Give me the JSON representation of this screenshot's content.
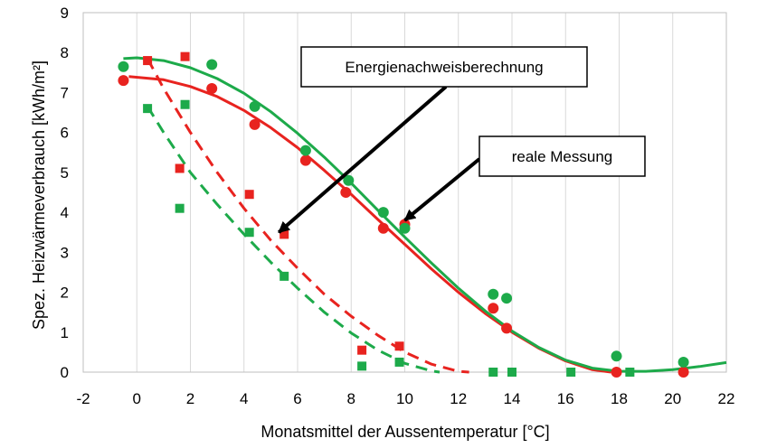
{
  "chart_data": {
    "type": "scatter",
    "xlabel": "Monatsmittel der Aussentemperatur [°C]",
    "ylabel": "Spez. Heizwärmeverbrauch  [kWh/m²]",
    "xlim": [
      -2,
      22
    ],
    "ylim": [
      0,
      9
    ],
    "x_ticks": [
      "-2",
      "0",
      "2",
      "4",
      "6",
      "8",
      "10",
      "12",
      "14",
      "16",
      "18",
      "20",
      "22"
    ],
    "y_ticks": [
      "0",
      "1",
      "2",
      "3",
      "4",
      "5",
      "6",
      "7",
      "8",
      "9"
    ],
    "grid": "vertical",
    "series": [
      {
        "color": "#e8231f",
        "marker": "circle",
        "points": [
          [
            -0.5,
            7.3
          ],
          [
            2.8,
            7.1
          ],
          [
            4.4,
            6.2
          ],
          [
            6.3,
            5.3
          ],
          [
            7.8,
            4.5
          ],
          [
            9.2,
            3.6
          ],
          [
            10.0,
            3.7
          ],
          [
            13.3,
            1.6
          ],
          [
            13.8,
            1.1
          ],
          [
            17.9,
            0.0
          ],
          [
            20.4,
            0.0
          ]
        ]
      },
      {
        "color": "#1daa4a",
        "marker": "circle",
        "points": [
          [
            -0.5,
            7.65
          ],
          [
            2.8,
            7.7
          ],
          [
            4.4,
            6.65
          ],
          [
            6.3,
            5.55
          ],
          [
            7.9,
            4.8
          ],
          [
            9.2,
            4.0
          ],
          [
            10.0,
            3.6
          ],
          [
            13.3,
            1.95
          ],
          [
            13.8,
            1.85
          ],
          [
            17.9,
            0.4
          ],
          [
            20.4,
            0.25
          ]
        ]
      },
      {
        "color": "#e8231f",
        "marker": "square",
        "points": [
          [
            0.4,
            7.8
          ],
          [
            1.6,
            5.1
          ],
          [
            1.8,
            7.9
          ],
          [
            4.2,
            4.45
          ],
          [
            5.5,
            3.45
          ],
          [
            8.4,
            0.55
          ],
          [
            9.8,
            0.65
          ]
        ]
      },
      {
        "color": "#1daa4a",
        "marker": "square",
        "points": [
          [
            0.4,
            6.6
          ],
          [
            1.6,
            4.1
          ],
          [
            1.8,
            6.7
          ],
          [
            4.2,
            3.5
          ],
          [
            5.5,
            2.4
          ],
          [
            8.4,
            0.15
          ],
          [
            9.8,
            0.25
          ],
          [
            13.3,
            0.0
          ],
          [
            14.0,
            0.0
          ],
          [
            16.2,
            0.0
          ],
          [
            18.4,
            0.0
          ]
        ]
      }
    ],
    "trendlines": [
      {
        "color": "#e8231f",
        "style": "solid",
        "points": [
          [
            -0.3,
            7.4
          ],
          [
            1,
            7.32
          ],
          [
            2,
            7.15
          ],
          [
            3,
            6.9
          ],
          [
            4,
            6.55
          ],
          [
            5,
            6.12
          ],
          [
            6,
            5.62
          ],
          [
            7,
            5.05
          ],
          [
            8,
            4.45
          ],
          [
            9,
            3.82
          ],
          [
            10,
            3.2
          ],
          [
            11,
            2.58
          ],
          [
            12,
            2.0
          ],
          [
            13,
            1.47
          ],
          [
            14,
            1.0
          ],
          [
            15,
            0.6
          ],
          [
            16,
            0.28
          ],
          [
            17,
            0.06
          ],
          [
            17.7,
            0.0
          ]
        ]
      },
      {
        "color": "#1daa4a",
        "style": "solid",
        "points": [
          [
            -0.5,
            7.85
          ],
          [
            0,
            7.87
          ],
          [
            1,
            7.8
          ],
          [
            2,
            7.62
          ],
          [
            3,
            7.35
          ],
          [
            4,
            6.98
          ],
          [
            5,
            6.52
          ],
          [
            6,
            5.98
          ],
          [
            7,
            5.38
          ],
          [
            8,
            4.73
          ],
          [
            9,
            4.05
          ],
          [
            10,
            3.38
          ],
          [
            11,
            2.73
          ],
          [
            12,
            2.1
          ],
          [
            13,
            1.53
          ],
          [
            14,
            1.03
          ],
          [
            15,
            0.62
          ],
          [
            16,
            0.3
          ],
          [
            17,
            0.1
          ],
          [
            18,
            0.02
          ],
          [
            19,
            0.02
          ],
          [
            20,
            0.06
          ],
          [
            21,
            0.14
          ],
          [
            22,
            0.24
          ]
        ]
      },
      {
        "color": "#e8231f",
        "style": "dashed",
        "points": [
          [
            0.4,
            7.85
          ],
          [
            1,
            7.1
          ],
          [
            2,
            6.0
          ],
          [
            3,
            5.0
          ],
          [
            4,
            4.1
          ],
          [
            5,
            3.3
          ],
          [
            6,
            2.6
          ],
          [
            7,
            1.95
          ],
          [
            8,
            1.4
          ],
          [
            9,
            0.92
          ],
          [
            10,
            0.5
          ],
          [
            11,
            0.2
          ],
          [
            12,
            0.02
          ],
          [
            12.4,
            0.0
          ]
        ]
      },
      {
        "color": "#1daa4a",
        "style": "dashed",
        "points": [
          [
            0.4,
            6.65
          ],
          [
            1,
            6.0
          ],
          [
            2,
            5.0
          ],
          [
            3,
            4.2
          ],
          [
            4,
            3.45
          ],
          [
            5,
            2.75
          ],
          [
            6,
            2.1
          ],
          [
            7,
            1.5
          ],
          [
            8,
            0.98
          ],
          [
            9,
            0.55
          ],
          [
            10,
            0.22
          ],
          [
            11,
            0.03
          ],
          [
            11.3,
            0.0
          ]
        ]
      }
    ],
    "annotations": [
      {
        "text": "Energienachweisberechnung",
        "target": [
          5.3,
          3.5
        ]
      },
      {
        "text": "reale Messung",
        "target": [
          10.0,
          3.8
        ]
      }
    ]
  }
}
